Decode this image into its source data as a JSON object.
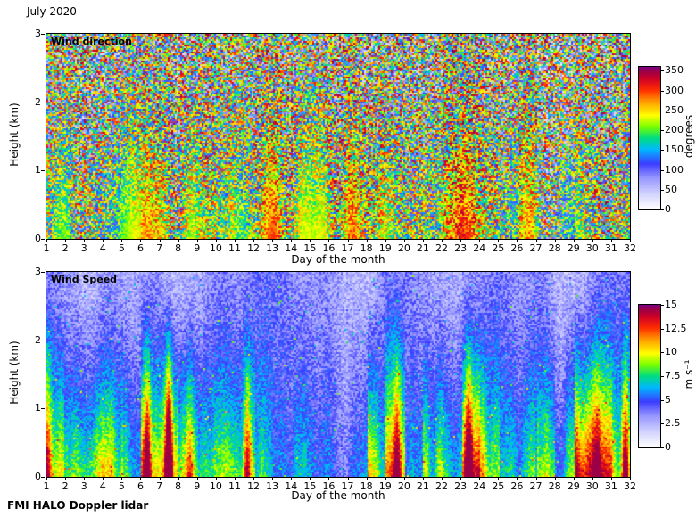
{
  "title": "July 2020",
  "footer": "FMI HALO Doppler lidar",
  "colormap_stops": [
    [
      0.0,
      255,
      255,
      255
    ],
    [
      0.1,
      214,
      214,
      255
    ],
    [
      0.22,
      150,
      150,
      255
    ],
    [
      0.32,
      60,
      60,
      255
    ],
    [
      0.42,
      0,
      185,
      255
    ],
    [
      0.5,
      0,
      220,
      130
    ],
    [
      0.58,
      120,
      255,
      0
    ],
    [
      0.66,
      255,
      255,
      0
    ],
    [
      0.75,
      255,
      165,
      0
    ],
    [
      0.84,
      255,
      45,
      0
    ],
    [
      0.92,
      205,
      0,
      40
    ],
    [
      0.97,
      155,
      0,
      70
    ],
    [
      1.0,
      128,
      0,
      128
    ]
  ],
  "chart_data": [
    {
      "type": "heatmap",
      "panel_label": "Wind direction",
      "xlabel": "Day of the month",
      "ylabel": "Height (km)",
      "xlim": [
        1,
        32
      ],
      "ylim": [
        0,
        3
      ],
      "x_ticks": [
        1,
        2,
        3,
        4,
        5,
        6,
        7,
        8,
        9,
        10,
        11,
        12,
        13,
        14,
        15,
        16,
        17,
        18,
        19,
        20,
        21,
        22,
        23,
        24,
        25,
        26,
        27,
        28,
        29,
        30,
        31,
        32
      ],
      "y_ticks": [
        0,
        1,
        2,
        3
      ],
      "colorbar": {
        "label": "degrees",
        "range": [
          0,
          360
        ],
        "ticks": [
          0,
          50,
          100,
          150,
          200,
          250,
          300,
          350
        ]
      },
      "surface_direction_by_day": [
        250,
        240,
        260,
        230,
        220,
        250,
        255,
        250,
        300,
        240,
        190,
        250,
        260,
        250,
        235,
        280,
        300,
        300,
        270,
        250,
        185,
        290,
        280,
        260,
        195,
        285,
        180,
        170,
        235,
        275,
        220
      ],
      "pattern_summary": "Speckled multicolour direction noise aloft with coherent yellow/orange/red and green plumes near the surface on most days."
    },
    {
      "type": "heatmap",
      "panel_label": "Wind Speed",
      "xlabel": "Day of the month",
      "ylabel": "Height (km)",
      "xlim": [
        1,
        32
      ],
      "ylim": [
        0,
        3
      ],
      "x_ticks": [
        1,
        2,
        3,
        4,
        5,
        6,
        7,
        8,
        9,
        10,
        11,
        12,
        13,
        14,
        15,
        16,
        17,
        18,
        19,
        20,
        21,
        22,
        23,
        24,
        25,
        26,
        27,
        28,
        29,
        30,
        31,
        32
      ],
      "y_ticks": [
        0,
        1,
        2,
        3
      ],
      "colorbar": {
        "label": "m s⁻¹",
        "range": [
          0,
          15
        ],
        "ticks": [
          0,
          2.5,
          5,
          7.5,
          10,
          12.5,
          15
        ]
      },
      "daily_peak_speed": [
        8,
        10,
        9,
        8,
        5,
        14,
        15,
        9,
        7,
        6,
        8,
        4,
        3,
        3,
        3,
        2,
        3,
        6,
        12,
        3,
        7,
        6,
        12,
        9,
        5,
        4,
        8,
        5,
        10,
        11,
        9
      ],
      "pattern_summary": "Mostly 0-5 m/s (white/lavender/blue) aloft; high-speed plumes up to ~15 m/s (red/dark red) near the surface, strongest around days 6-7, 19, 23 and 29-31."
    }
  ]
}
